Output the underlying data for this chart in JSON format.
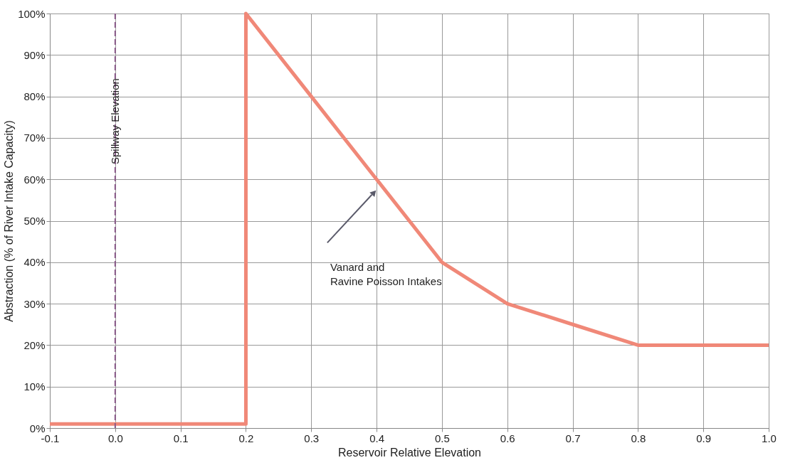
{
  "chart_data": {
    "type": "line",
    "xlabel": "Reservoir Relative Elevation",
    "ylabel": "Abstraction (% of River Intake Capacity)",
    "x": [
      -0.1,
      0.2,
      0.2,
      0.3,
      0.4,
      0.5,
      0.6,
      0.7,
      0.8,
      1.0
    ],
    "series": [
      {
        "color": "#f08878",
        "values": [
          1,
          1,
          100,
          80,
          60,
          40,
          30,
          25,
          20,
          20
        ]
      }
    ],
    "xlim": [
      -0.1,
      1.0
    ],
    "xticks": [
      -0.1,
      {
        "value": 0,
        "label": "0.0"
      },
      0.1,
      0.2,
      0.3,
      0.4,
      0.5,
      0.6,
      0.7,
      0.8,
      0.9,
      {
        "value": 1,
        "label": "1.0"
      }
    ],
    "ylim": [
      0,
      100
    ],
    "yticks": [
      {
        "value": 0,
        "label": "0%"
      },
      {
        "value": 10,
        "label": "10%"
      },
      {
        "value": 20,
        "label": "20%"
      },
      {
        "value": 30,
        "label": "30%"
      },
      {
        "value": 40,
        "label": "40%"
      },
      {
        "value": 50,
        "label": "50%"
      },
      {
        "value": 60,
        "label": "60%"
      },
      {
        "value": 70,
        "label": "70%"
      },
      {
        "value": 80,
        "label": "80%"
      },
      {
        "value": 90,
        "label": "90%"
      },
      {
        "value": 100,
        "label": "100%"
      }
    ],
    "grid": true,
    "line_style": "solid",
    "marker": "none",
    "ref_lines": [
      {
        "axis": "x",
        "value": 0,
        "label": "Spillway Elevation",
        "color": "#8a5a8a",
        "line_style": "dashed"
      }
    ],
    "annotations": [
      "Vanard and\nRavine Poisson Intakes"
    ]
  }
}
